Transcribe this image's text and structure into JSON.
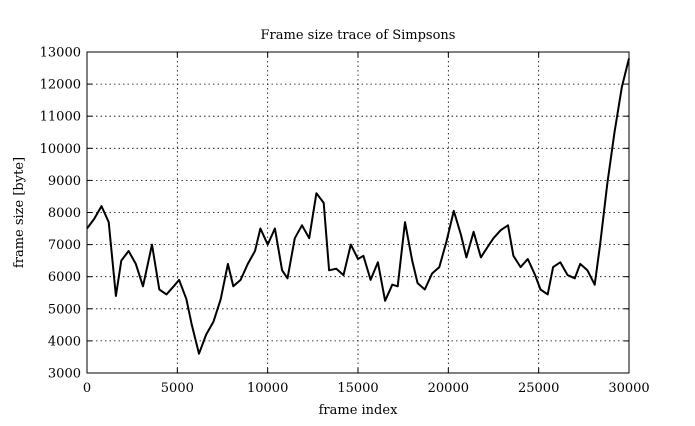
{
  "chart_data": {
    "type": "line",
    "title": "Frame size trace of Simpsons",
    "xlabel": "frame index",
    "ylabel": "frame size [byte]",
    "xlim": [
      0,
      30000
    ],
    "ylim": [
      3000,
      13000
    ],
    "grid": true,
    "x_ticks": [
      0,
      5000,
      10000,
      15000,
      20000,
      25000,
      30000
    ],
    "y_ticks": [
      3000,
      4000,
      5000,
      6000,
      7000,
      8000,
      9000,
      10000,
      11000,
      12000,
      13000
    ],
    "series": [
      {
        "color": "#000000",
        "x": [
          0,
          400,
          800,
          1200,
          1600,
          1900,
          2300,
          2700,
          3100,
          3600,
          4000,
          4400,
          4800,
          5100,
          5500,
          5800,
          6200,
          6600,
          7000,
          7400,
          7800,
          8100,
          8500,
          8900,
          9300,
          9600,
          10000,
          10400,
          10800,
          11100,
          11500,
          11900,
          12300,
          12700,
          13100,
          13400,
          13800,
          14200,
          14600,
          15000,
          15300,
          15700,
          16100,
          16500,
          16900,
          17200,
          17600,
          18000,
          18300,
          18700,
          19100,
          19500,
          19900,
          20300,
          20700,
          21000,
          21400,
          21800,
          22200,
          22500,
          22900,
          23300,
          23600,
          24000,
          24400,
          24800,
          25100,
          25500,
          25800,
          26200,
          26600,
          27000,
          27300,
          27700,
          28100,
          28400,
          28800,
          29200,
          29600,
          30000
        ],
        "values": [
          7500,
          7800,
          8200,
          7700,
          5400,
          6500,
          6800,
          6400,
          5700,
          7000,
          5600,
          5450,
          5700,
          5900,
          5300,
          4500,
          3600,
          4200,
          4600,
          5300,
          6400,
          5700,
          5900,
          6400,
          6800,
          7500,
          7000,
          7500,
          6200,
          5950,
          7200,
          7600,
          7200,
          8600,
          8300,
          6200,
          6250,
          6050,
          7000,
          6550,
          6650,
          5900,
          6450,
          5250,
          5750,
          5700,
          7700,
          6500,
          5800,
          5600,
          6100,
          6300,
          7100,
          8050,
          7300,
          6600,
          7400,
          6600,
          6950,
          7200,
          7450,
          7600,
          6650,
          6300,
          6550,
          6050,
          5600,
          5450,
          6300,
          6450,
          6050,
          5950,
          6400,
          6200,
          5750,
          7000,
          8900,
          10500,
          11900,
          12800
        ]
      }
    ]
  }
}
